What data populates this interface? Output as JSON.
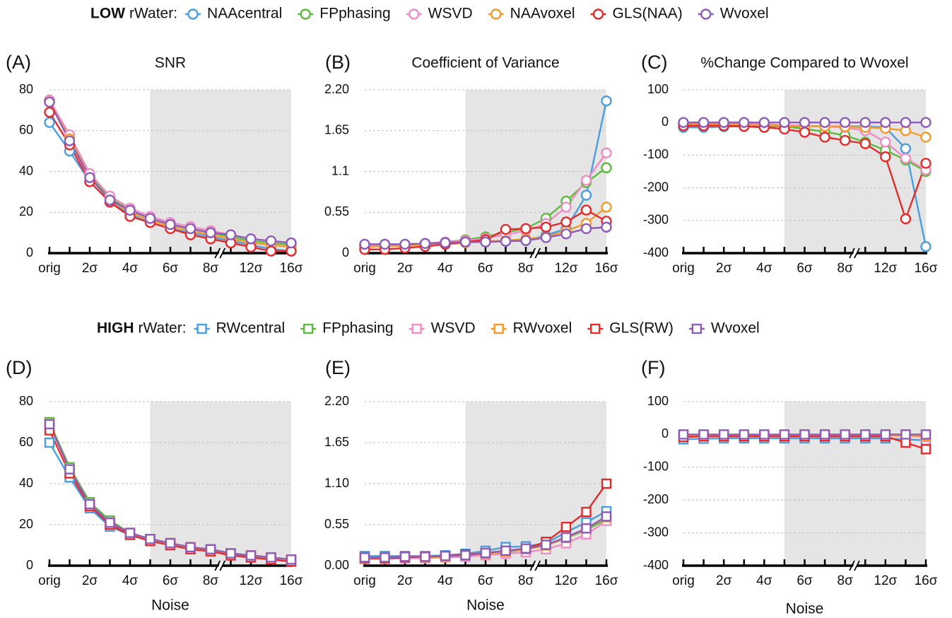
{
  "chart_data": [
    {
      "type": "line",
      "panel_label": "(A)",
      "title": "SNR",
      "marker": "circle",
      "grid": true,
      "legend_title_bold": "LOW",
      "legend_title": "rWater:",
      "categories": [
        "orig",
        null,
        "2σ",
        null,
        "4σ",
        null,
        "6σ",
        null,
        "8σ",
        null,
        "12σ",
        null,
        "16σ"
      ],
      "ylim": [
        0,
        80
      ],
      "yticks": [
        0,
        20,
        40,
        60,
        80
      ],
      "series": [
        {
          "name": "NAAcentral",
          "color": "#4a9ee0",
          "values": [
            64,
            50,
            35,
            25,
            19,
            15,
            12,
            10,
            8,
            6,
            4,
            2,
            1
          ]
        },
        {
          "name": "FPphasing",
          "color": "#5cbb3c",
          "values": [
            75,
            57,
            38,
            27,
            21,
            17,
            14,
            12,
            10,
            8,
            6,
            5,
            4
          ]
        },
        {
          "name": "WSVD",
          "color": "#f08cc4",
          "values": [
            75,
            58,
            39,
            28,
            22,
            18,
            15,
            13,
            11,
            9,
            7,
            6,
            5
          ]
        },
        {
          "name": "NAAvoxel",
          "color": "#f39a2c",
          "values": [
            74,
            56,
            37,
            26,
            20,
            16,
            13,
            11,
            9,
            7,
            5,
            4,
            3
          ]
        },
        {
          "name": "GLS(NAA)",
          "color": "#e42b2b",
          "values": [
            69,
            53,
            35,
            25,
            18,
            15,
            12,
            9,
            7,
            5,
            3,
            1,
            1
          ]
        },
        {
          "name": "Wvoxel",
          "color": "#8e5bb6",
          "values": [
            74,
            55,
            37,
            26,
            21,
            17,
            14,
            12,
            10,
            9,
            7,
            6,
            5
          ]
        }
      ]
    },
    {
      "type": "line",
      "panel_label": "(B)",
      "title": "Coefficient of Variance",
      "marker": "circle",
      "grid": true,
      "categories": [
        "orig",
        null,
        "2σ",
        null,
        "4σ",
        null,
        "6σ",
        null,
        "8σ",
        null,
        "12σ",
        null,
        "16σ"
      ],
      "ylim": [
        0,
        2.2
      ],
      "yticks": [
        0,
        0.55,
        1.1,
        1.65,
        {
          "value": 2.2,
          "label": "2.20"
        }
      ],
      "series": [
        {
          "name": "NAAcentral",
          "color": "#4a9ee0",
          "values": [
            0.12,
            0.12,
            0.12,
            0.13,
            0.14,
            0.15,
            0.16,
            0.16,
            0.17,
            0.24,
            0.33,
            0.78,
            2.05
          ]
        },
        {
          "name": "FPphasing",
          "color": "#5cbb3c",
          "values": [
            0.1,
            0.11,
            0.12,
            0.13,
            0.15,
            0.18,
            0.22,
            0.28,
            0.33,
            0.47,
            0.7,
            0.95,
            1.15
          ]
        },
        {
          "name": "WSVD",
          "color": "#f08cc4",
          "values": [
            0.1,
            0.11,
            0.12,
            0.13,
            0.15,
            0.17,
            0.2,
            0.25,
            0.3,
            0.4,
            0.62,
            0.98,
            1.35
          ]
        },
        {
          "name": "NAAvoxel",
          "color": "#f39a2c",
          "values": [
            0.08,
            0.09,
            0.1,
            0.11,
            0.12,
            0.14,
            0.16,
            0.17,
            0.19,
            0.22,
            0.3,
            0.4,
            0.62
          ]
        },
        {
          "name": "GLS(NAA)",
          "color": "#e42b2b",
          "values": [
            0.05,
            0.05,
            0.07,
            0.09,
            0.12,
            0.15,
            0.18,
            0.32,
            0.33,
            0.35,
            0.42,
            0.58,
            0.43
          ]
        },
        {
          "name": "Wvoxel",
          "color": "#8e5bb6",
          "values": [
            0.12,
            0.12,
            0.12,
            0.13,
            0.14,
            0.15,
            0.15,
            0.16,
            0.17,
            0.21,
            0.26,
            0.33,
            0.35
          ]
        }
      ]
    },
    {
      "type": "line",
      "panel_label": "(C)",
      "title": "%Change Compared to Wvoxel",
      "marker": "circle",
      "grid": true,
      "categories": [
        "orig",
        null,
        "2σ",
        null,
        "4σ",
        null,
        "6σ",
        null,
        "8σ",
        null,
        "12σ",
        null,
        "16σ"
      ],
      "ylim": [
        -400,
        100
      ],
      "yticks": [
        -400,
        -300,
        -200,
        -100,
        0,
        100
      ],
      "series": [
        {
          "name": "NAAcentral",
          "color": "#4a9ee0",
          "values": [
            -15,
            -15,
            -13,
            -12,
            -12,
            -12,
            -12,
            -12,
            -12,
            -12,
            -15,
            -80,
            -380
          ]
        },
        {
          "name": "FPphasing",
          "color": "#5cbb3c",
          "values": [
            -3,
            -3,
            -4,
            -5,
            -8,
            -12,
            -20,
            -28,
            -40,
            -60,
            -85,
            -115,
            -150
          ]
        },
        {
          "name": "WSVD",
          "color": "#f08cc4",
          "values": [
            -3,
            -2,
            -2,
            -3,
            -5,
            -8,
            -10,
            -12,
            -15,
            -25,
            -60,
            -110,
            -145
          ]
        },
        {
          "name": "NAAvoxel",
          "color": "#f39a2c",
          "values": [
            -5,
            -5,
            -6,
            -7,
            -8,
            -10,
            -12,
            -12,
            -13,
            -15,
            -18,
            -25,
            -45
          ]
        },
        {
          "name": "GLS(NAA)",
          "color": "#e42b2b",
          "values": [
            -10,
            -10,
            -10,
            -12,
            -15,
            -20,
            -30,
            -45,
            -55,
            -65,
            -105,
            -295,
            -125
          ]
        },
        {
          "name": "Wvoxel",
          "color": "#8e5bb6",
          "values": [
            0,
            0,
            0,
            0,
            0,
            0,
            0,
            0,
            0,
            0,
            0,
            0,
            0
          ]
        }
      ]
    },
    {
      "type": "line",
      "panel_label": "(D)",
      "xlabel": "Noise",
      "marker": "square",
      "grid": true,
      "legend_title_bold": "HIGH",
      "legend_title": "rWater:",
      "categories": [
        "orig",
        null,
        "2σ",
        null,
        "4σ",
        null,
        "6σ",
        null,
        "8σ",
        null,
        "12σ",
        null,
        "16σ"
      ],
      "ylim": [
        0,
        80
      ],
      "yticks": [
        0,
        20,
        40,
        60,
        80
      ],
      "series": [
        {
          "name": "RWcentral",
          "color": "#4a9ee0",
          "values": [
            60,
            43,
            28,
            19,
            15,
            12,
            10,
            8,
            7,
            6,
            4,
            3,
            2
          ]
        },
        {
          "name": "FPphasing",
          "color": "#5cbb3c",
          "values": [
            70,
            48,
            31,
            22,
            16,
            13,
            11,
            9,
            8,
            6,
            5,
            4,
            3
          ]
        },
        {
          "name": "WSVD",
          "color": "#f08cc4",
          "values": [
            69,
            47,
            30,
            21,
            16,
            13,
            11,
            9,
            7,
            6,
            5,
            4,
            3
          ]
        },
        {
          "name": "RWvoxel",
          "color": "#f39a2c",
          "values": [
            69,
            47,
            30,
            21,
            16,
            13,
            11,
            9,
            7,
            6,
            5,
            4,
            3
          ]
        },
        {
          "name": "GLS(RW)",
          "color": "#e42b2b",
          "values": [
            66,
            45,
            29,
            20,
            15,
            12,
            10,
            8,
            7,
            5,
            4,
            3,
            2
          ]
        },
        {
          "name": "Wvoxel",
          "color": "#8e5bb6",
          "values": [
            69,
            47,
            30,
            21,
            16,
            13,
            11,
            9,
            8,
            6,
            5,
            4,
            3
          ]
        }
      ]
    },
    {
      "type": "line",
      "panel_label": "(E)",
      "xlabel": "Noise",
      "marker": "square",
      "grid": true,
      "categories": [
        "orig",
        null,
        "2σ",
        null,
        "4σ",
        null,
        "6σ",
        null,
        "8σ",
        null,
        "12σ",
        null,
        "16σ"
      ],
      "ylim": [
        0,
        2.2
      ],
      "yticks": [
        {
          "value": 0,
          "label": "0.00"
        },
        0.55,
        {
          "value": 1.1,
          "label": "1.10"
        },
        1.65,
        {
          "value": 2.2,
          "label": "2.20"
        }
      ],
      "series": [
        {
          "name": "RWcentral",
          "color": "#4a9ee0",
          "values": [
            0.13,
            0.13,
            0.13,
            0.13,
            0.14,
            0.16,
            0.2,
            0.25,
            0.26,
            0.3,
            0.45,
            0.58,
            0.73
          ]
        },
        {
          "name": "FPphasing",
          "color": "#5cbb3c",
          "values": [
            0.1,
            0.1,
            0.11,
            0.11,
            0.12,
            0.13,
            0.15,
            0.18,
            0.22,
            0.27,
            0.37,
            0.48,
            0.62
          ]
        },
        {
          "name": "WSVD",
          "color": "#f08cc4",
          "values": [
            0.09,
            0.09,
            0.1,
            0.1,
            0.11,
            0.12,
            0.14,
            0.16,
            0.18,
            0.22,
            0.3,
            0.42,
            0.6
          ]
        },
        {
          "name": "RWvoxel",
          "color": "#f39a2c",
          "values": [
            0.1,
            0.1,
            0.11,
            0.11,
            0.12,
            0.14,
            0.16,
            0.19,
            0.22,
            0.27,
            0.37,
            0.5,
            0.65
          ]
        },
        {
          "name": "GLS(RW)",
          "color": "#e42b2b",
          "values": [
            0.1,
            0.1,
            0.11,
            0.12,
            0.13,
            0.15,
            0.17,
            0.2,
            0.23,
            0.32,
            0.52,
            0.72,
            1.1
          ]
        },
        {
          "name": "Wvoxel",
          "color": "#8e5bb6",
          "values": [
            0.11,
            0.11,
            0.12,
            0.12,
            0.13,
            0.14,
            0.17,
            0.2,
            0.23,
            0.28,
            0.38,
            0.5,
            0.66
          ]
        }
      ]
    },
    {
      "type": "line",
      "panel_label": "(F)",
      "xlabel": "Noise",
      "marker": "square",
      "grid": true,
      "categories": [
        "orig",
        null,
        "2σ",
        null,
        "4σ",
        null,
        "6σ",
        null,
        "8σ",
        null,
        "12σ",
        null,
        "16σ"
      ],
      "ylim": [
        -400,
        100
      ],
      "yticks": [
        -400,
        -300,
        -200,
        -100,
        0,
        100
      ],
      "series": [
        {
          "name": "RWcentral",
          "color": "#4a9ee0",
          "values": [
            -15,
            -13,
            -12,
            -12,
            -12,
            -12,
            -12,
            -12,
            -12,
            -12,
            -12,
            -15,
            -18
          ]
        },
        {
          "name": "FPphasing",
          "color": "#5cbb3c",
          "values": [
            -2,
            -2,
            -2,
            -2,
            -2,
            -2,
            -2,
            -2,
            -2,
            -2,
            -2,
            -3,
            -5
          ]
        },
        {
          "name": "WSVD",
          "color": "#f08cc4",
          "values": [
            -3,
            -3,
            -3,
            -3,
            -3,
            -3,
            -3,
            -3,
            -3,
            -3,
            -3,
            -5,
            -8
          ]
        },
        {
          "name": "RWvoxel",
          "color": "#f39a2c",
          "values": [
            -2,
            -2,
            -2,
            -2,
            -2,
            -2,
            -2,
            -2,
            -2,
            -2,
            -2,
            -3,
            -4
          ]
        },
        {
          "name": "GLS(RW)",
          "color": "#e42b2b",
          "values": [
            -8,
            -6,
            -6,
            -6,
            -6,
            -6,
            -6,
            -6,
            -6,
            -6,
            -6,
            -25,
            -45
          ]
        },
        {
          "name": "Wvoxel",
          "color": "#8e5bb6",
          "values": [
            0,
            0,
            0,
            0,
            0,
            0,
            0,
            0,
            0,
            0,
            0,
            0,
            0
          ]
        }
      ]
    }
  ]
}
